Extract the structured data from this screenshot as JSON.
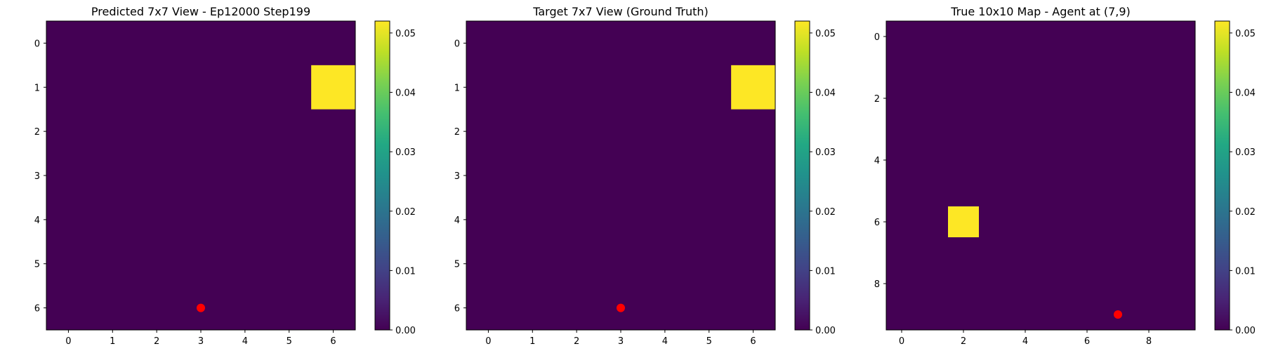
{
  "chart_data": [
    {
      "type": "heatmap",
      "title": "Predicted 7x7 View - Ep12000 Step199",
      "grid_size": 7,
      "xticks": [
        0,
        1,
        2,
        3,
        4,
        5,
        6
      ],
      "yticks": [
        0,
        1,
        2,
        3,
        4,
        5,
        6
      ],
      "colorbar": {
        "range": [
          0,
          0.052
        ],
        "ticks": [
          "0.00",
          "0.01",
          "0.02",
          "0.03",
          "0.04",
          "0.05"
        ]
      },
      "hot_cells": [
        {
          "row": 1,
          "col": 6,
          "value": 0.052
        }
      ],
      "agent": {
        "col": 3,
        "row": 6,
        "color": "#ff0000"
      }
    },
    {
      "type": "heatmap",
      "title": "Target 7x7 View (Ground Truth)",
      "grid_size": 7,
      "xticks": [
        0,
        1,
        2,
        3,
        4,
        5,
        6
      ],
      "yticks": [
        0,
        1,
        2,
        3,
        4,
        5,
        6
      ],
      "colorbar": {
        "range": [
          0,
          0.052
        ],
        "ticks": [
          "0.00",
          "0.01",
          "0.02",
          "0.03",
          "0.04",
          "0.05"
        ]
      },
      "hot_cells": [
        {
          "row": 1,
          "col": 6,
          "value": 0.052
        }
      ],
      "agent": {
        "col": 3,
        "row": 6,
        "color": "#ff0000"
      }
    },
    {
      "type": "heatmap",
      "title": "True 10x10 Map - Agent at (7,9)",
      "grid_size": 10,
      "xticks": [
        0,
        2,
        4,
        6,
        8
      ],
      "yticks": [
        0,
        2,
        4,
        6,
        8
      ],
      "colorbar": {
        "range": [
          0,
          0.052
        ],
        "ticks": [
          "0.00",
          "0.01",
          "0.02",
          "0.03",
          "0.04",
          "0.05"
        ]
      },
      "hot_cells": [
        {
          "row": 6,
          "col": 2,
          "value": 0.052
        }
      ],
      "agent": {
        "col": 7,
        "row": 9,
        "color": "#ff0000"
      }
    }
  ]
}
